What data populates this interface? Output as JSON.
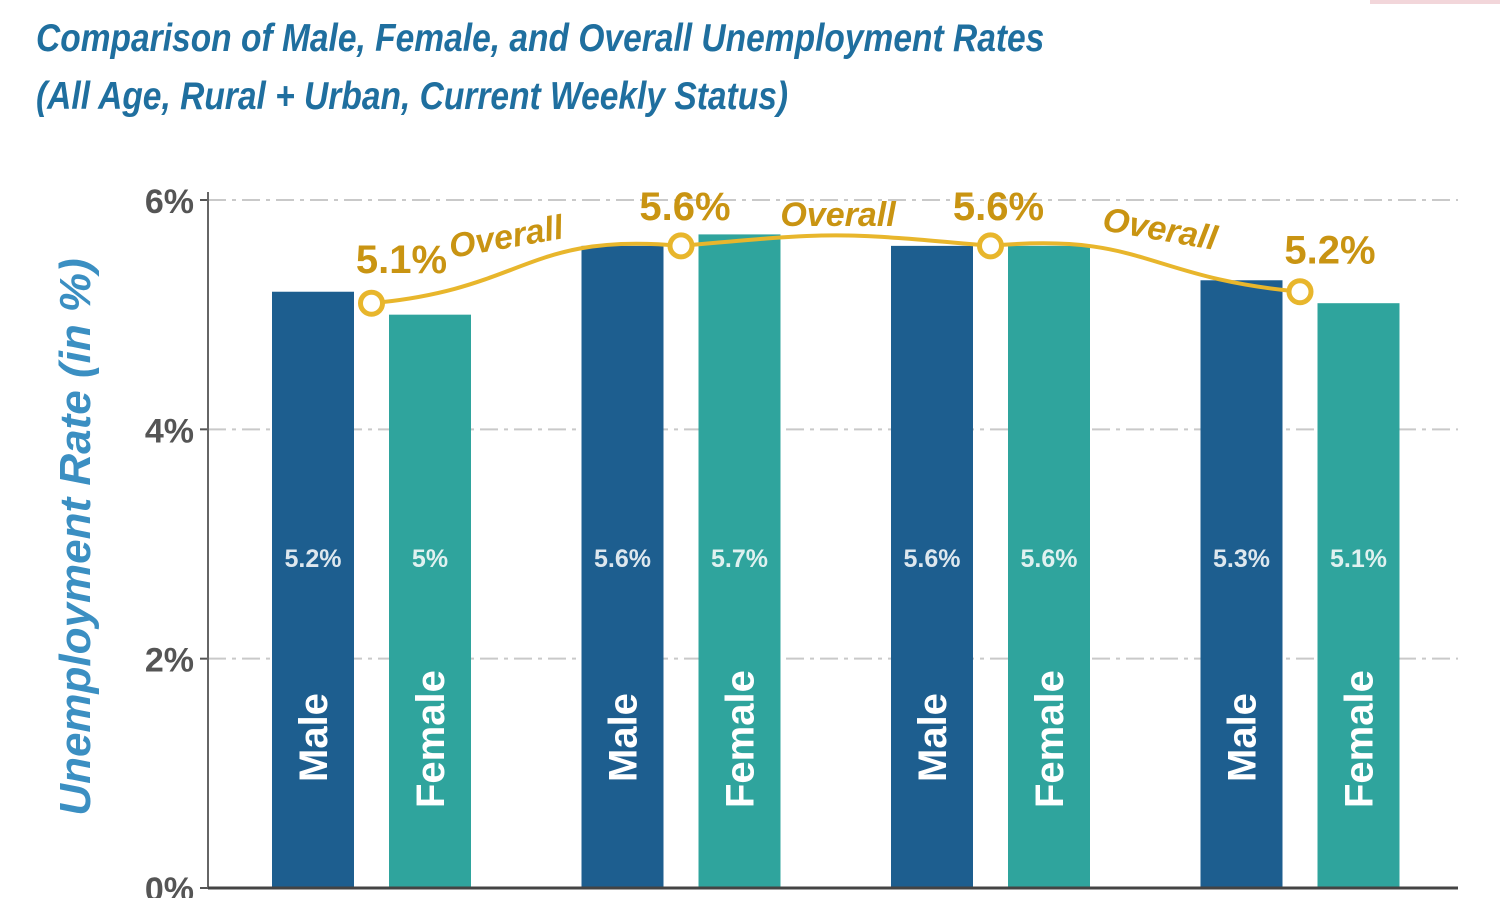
{
  "chart_data": {
    "type": "bar",
    "title": "Comparison of Male, Female, and Overall Unemployment Rates",
    "subtitle": "(All Age, Rural + Urban, Current Weekly Status)",
    "ylabel": "Unemployment Rate (in %)",
    "xlabel": "",
    "ylim": [
      0,
      6
    ],
    "yticks": [
      0,
      2,
      4,
      6
    ],
    "ytick_labels": [
      "0%",
      "2%",
      "4%",
      "6%"
    ],
    "grid": true,
    "groups": 4,
    "series": [
      {
        "name": "Male",
        "color": "#1d5e8f",
        "values": [
          5.2,
          5.6,
          5.6,
          5.3
        ],
        "value_labels": [
          "5.2%",
          "5.6%",
          "5.6%",
          "5.3%"
        ]
      },
      {
        "name": "Female",
        "color": "#2fa49d",
        "values": [
          5.0,
          5.7,
          5.6,
          5.1
        ],
        "value_labels": [
          "5%",
          "5.7%",
          "5.6%",
          "5.1%"
        ]
      }
    ],
    "overall": {
      "name": "Overall",
      "color": "#e8b62c",
      "label_color": "#c99412",
      "values": [
        5.1,
        5.6,
        5.6,
        5.2
      ],
      "value_labels": [
        "5.1%",
        "5.6%",
        "5.6%",
        "5.2%"
      ]
    }
  }
}
